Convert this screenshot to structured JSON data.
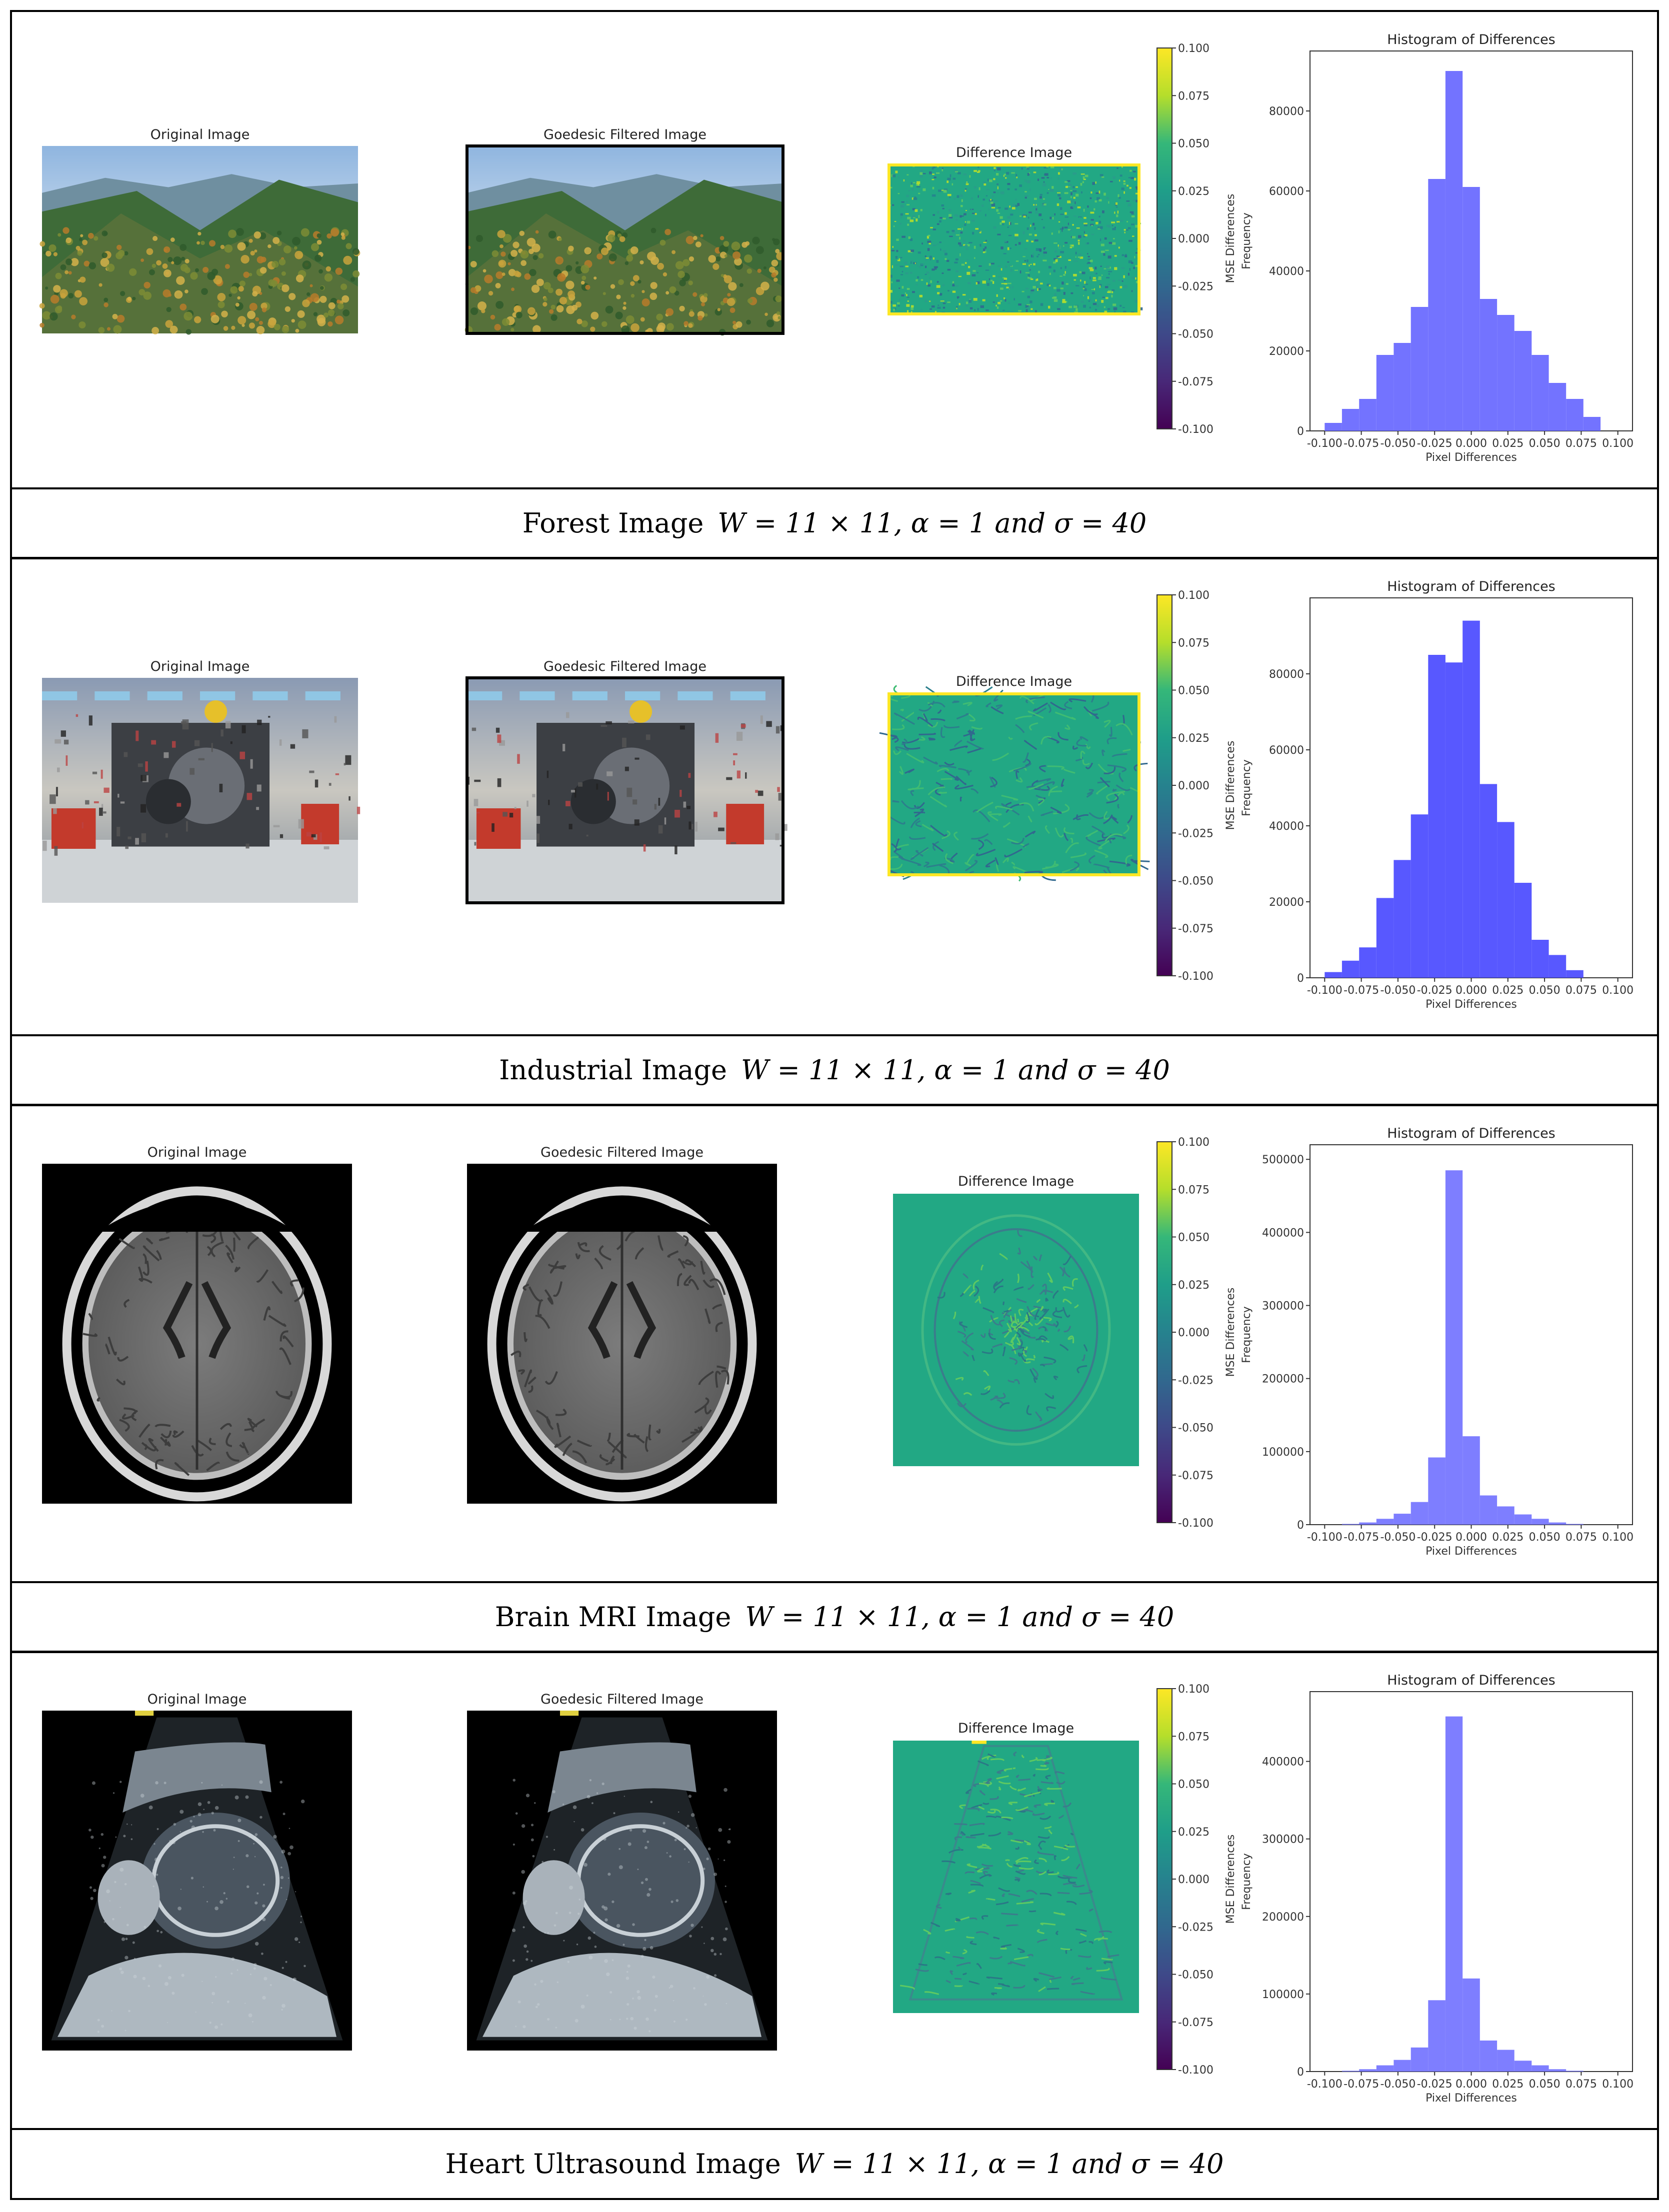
{
  "rows": [
    {
      "id": "forest",
      "caption_label": "Forest Image",
      "caption_params": "W = 11 × 11, α = 1 and σ = 40",
      "original_title": "Original Image",
      "filtered_title": "Goedesic Filtered Image",
      "difference_title": "Difference Image",
      "colorbar_label": "MSE Differences",
      "scene": "forest",
      "diff_style": "noise",
      "chart_data": {
        "type": "bar",
        "title": "Histogram of Differences",
        "xlabel": "Pixel Differences",
        "ylabel": "Frequency",
        "bin_edges": [
          -0.1,
          -0.0882,
          -0.0765,
          -0.0647,
          -0.0529,
          -0.0412,
          -0.0294,
          -0.0176,
          -0.0059,
          0.0059,
          0.0176,
          0.0294,
          0.0412,
          0.0529,
          0.0647,
          0.0765,
          0.0882,
          0.1
        ],
        "values": [
          2000,
          5500,
          8000,
          19000,
          22000,
          31000,
          63000,
          90000,
          61000,
          33000,
          29000,
          25000,
          19000,
          12000,
          8000,
          3500,
          0
        ],
        "ylim": [
          0,
          95000
        ],
        "yticks": [
          0,
          20000,
          40000,
          60000,
          80000
        ],
        "xlim": [
          -0.1,
          0.1
        ],
        "xticks": [
          "-0.100",
          "-0.075",
          "-0.050",
          "-0.025",
          "0.000",
          "0.025",
          "0.050",
          "0.075",
          "0.100"
        ],
        "bar_color": "#6b6bff"
      }
    },
    {
      "id": "industrial",
      "caption_label": "Industrial Image",
      "caption_params": "W = 11 × 11, α = 1 and σ = 40",
      "original_title": "Original Image",
      "filtered_title": "Goedesic Filtered Image",
      "difference_title": "Difference Image",
      "colorbar_label": "MSE Differences",
      "scene": "industrial",
      "diff_style": "swirl",
      "chart_data": {
        "type": "bar",
        "title": "Histogram of Differences",
        "xlabel": "Pixel Differences",
        "ylabel": "Frequency",
        "bin_edges": [
          -0.1,
          -0.0882,
          -0.0765,
          -0.0647,
          -0.0529,
          -0.0412,
          -0.0294,
          -0.0176,
          -0.0059,
          0.0059,
          0.0176,
          0.0294,
          0.0412,
          0.0529,
          0.0647,
          0.0765,
          0.0882,
          0.1
        ],
        "values": [
          1500,
          4500,
          8000,
          21000,
          31000,
          43000,
          85000,
          83000,
          94000,
          51000,
          41000,
          25000,
          10000,
          6000,
          2000,
          0,
          0
        ],
        "ylim": [
          0,
          100000
        ],
        "yticks": [
          0,
          20000,
          40000,
          60000,
          80000
        ],
        "xlim": [
          -0.1,
          0.1
        ],
        "xticks": [
          "-0.100",
          "-0.075",
          "-0.050",
          "-0.025",
          "0.000",
          "0.025",
          "0.050",
          "0.075",
          "0.100"
        ],
        "bar_color": "#4f4fff"
      }
    },
    {
      "id": "brain",
      "caption_label": "Brain MRI Image",
      "caption_params": "W = 11 × 11, α = 1 and σ = 40",
      "original_title": "Original Image",
      "filtered_title": "Goedesic Filtered Image",
      "difference_title": "Difference Image",
      "colorbar_label": "MSE Differences",
      "scene": "brain",
      "diff_style": "outline-brain",
      "chart_data": {
        "type": "bar",
        "title": "Histogram of Differences",
        "xlabel": "Pixel Differences",
        "ylabel": "Frequency",
        "bin_edges": [
          -0.1,
          -0.0882,
          -0.0765,
          -0.0647,
          -0.0529,
          -0.0412,
          -0.0294,
          -0.0176,
          -0.0059,
          0.0059,
          0.0176,
          0.0294,
          0.0412,
          0.0529,
          0.0647,
          0.0765,
          0.0882,
          0.1
        ],
        "values": [
          0,
          1000,
          3000,
          8000,
          15000,
          31000,
          92000,
          485000,
          121000,
          40000,
          25000,
          14000,
          8000,
          3000,
          1000,
          0,
          0
        ],
        "ylim": [
          0,
          520000
        ],
        "yticks": [
          0,
          100000,
          200000,
          300000,
          400000,
          500000
        ],
        "xlim": [
          -0.1,
          0.1
        ],
        "xticks": [
          "-0.100",
          "-0.075",
          "-0.050",
          "-0.025",
          "0.000",
          "0.025",
          "0.050",
          "0.075",
          "0.100"
        ],
        "bar_color": "#7777ff"
      }
    },
    {
      "id": "ultrasound",
      "caption_label": "Heart Ultrasound Image",
      "caption_params": "W = 11 × 11, α = 1 and σ = 40",
      "original_title": "Original Image",
      "filtered_title": "Goedesic Filtered Image",
      "difference_title": "Difference Image",
      "colorbar_label": "MSE Differences",
      "scene": "ultrasound",
      "diff_style": "outline-fan",
      "chart_data": {
        "type": "bar",
        "title": "Histogram of Differences",
        "xlabel": "Pixel Differences",
        "ylabel": "Frequency",
        "bin_edges": [
          -0.1,
          -0.0882,
          -0.0765,
          -0.0647,
          -0.0529,
          -0.0412,
          -0.0294,
          -0.0176,
          -0.0059,
          0.0059,
          0.0176,
          0.0294,
          0.0412,
          0.0529,
          0.0647,
          0.0765,
          0.0882,
          0.1
        ],
        "values": [
          0,
          1000,
          3000,
          8000,
          15000,
          31000,
          92000,
          458000,
          120000,
          40000,
          28000,
          14000,
          8000,
          3000,
          1000,
          0,
          0
        ],
        "ylim": [
          0,
          490000
        ],
        "yticks": [
          0,
          100000,
          200000,
          300000,
          400000
        ],
        "xlim": [
          -0.1,
          0.1
        ],
        "xticks": [
          "-0.100",
          "-0.075",
          "-0.050",
          "-0.025",
          "0.000",
          "0.025",
          "0.050",
          "0.075",
          "0.100"
        ],
        "bar_color": "#7777ff"
      }
    }
  ],
  "colorbar_ticks": [
    "0.100",
    "0.075",
    "0.050",
    "0.025",
    "0.000",
    "-0.025",
    "-0.050",
    "-0.075",
    "-0.100"
  ],
  "colorbar_colors": [
    "#fde725",
    "#b5de2b",
    "#35b779",
    "#1f9e89",
    "#26828e",
    "#31688e",
    "#3e4989",
    "#482878",
    "#440154"
  ]
}
